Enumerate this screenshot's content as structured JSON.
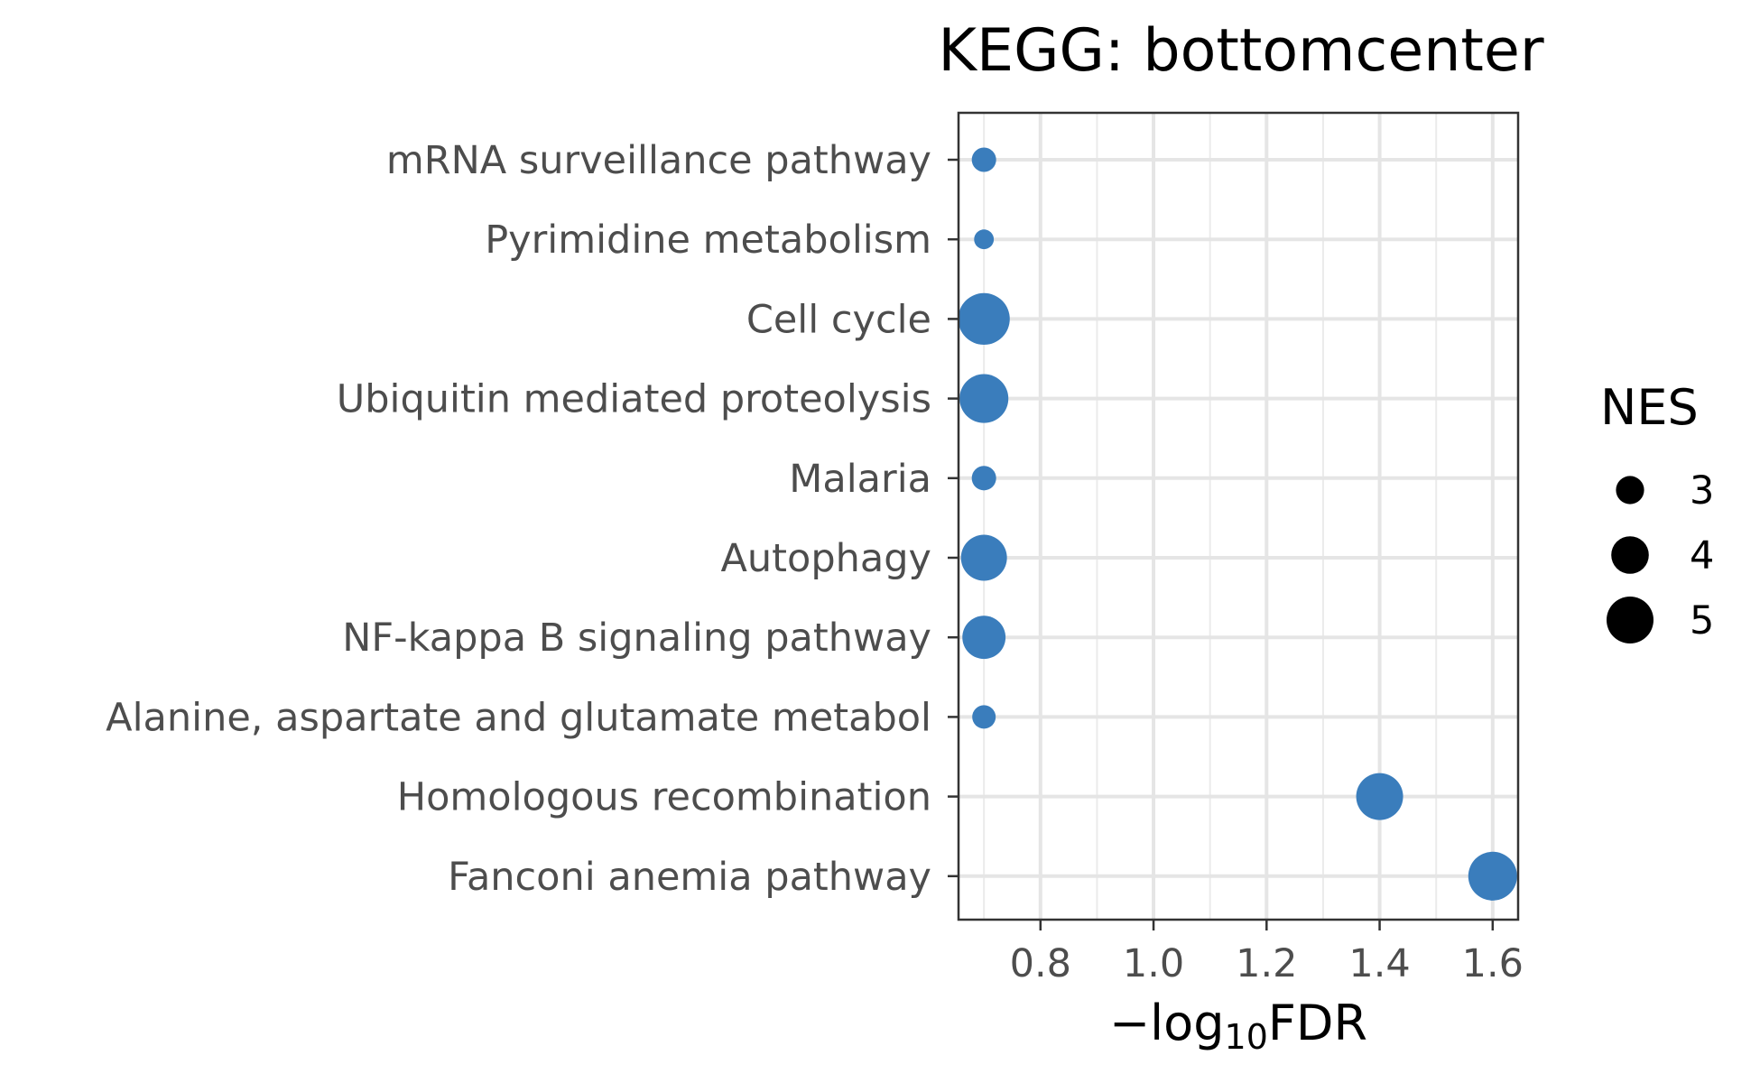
{
  "chart_data": {
    "type": "scatter",
    "title": "KEGG: bottomcenter",
    "xlabel": {
      "prefix": "−log",
      "subscript": "10",
      "suffix": "FDR"
    },
    "ylabel": "",
    "xlim": [
      0.655,
      1.645
    ],
    "x_ticks": [
      0.8,
      1.0,
      1.2,
      1.4,
      1.6
    ],
    "x_tick_labels": [
      "0.8",
      "1.0",
      "1.2",
      "1.4",
      "1.6"
    ],
    "x_minor_ticks": [
      0.7,
      0.9,
      1.1,
      1.3,
      1.5
    ],
    "grid": true,
    "point_color": "#3a7dbc",
    "categories": [
      "mRNA surveillance pathway",
      "Pyrimidine metabolism",
      "Cell cycle",
      "Ubiquitin mediated proteolysis",
      "Malaria",
      "Autophagy",
      "NF-kappa B signaling pathway",
      "Alanine, aspartate and glutamate metabol",
      "Homologous recombination",
      "Fanconi anemia pathway"
    ],
    "x": [
      0.7,
      0.7,
      0.7,
      0.7,
      0.7,
      0.7,
      0.7,
      0.7,
      1.4,
      1.6
    ],
    "size": [
      2.6,
      2.1,
      5.5,
      5.2,
      2.6,
      4.9,
      4.6,
      2.5,
      5.0,
      5.2
    ],
    "legend": {
      "title": "NES",
      "position": "right",
      "entries": [
        {
          "label": "3",
          "value": 3
        },
        {
          "label": "4",
          "value": 4
        },
        {
          "label": "5",
          "value": 5
        }
      ]
    }
  }
}
